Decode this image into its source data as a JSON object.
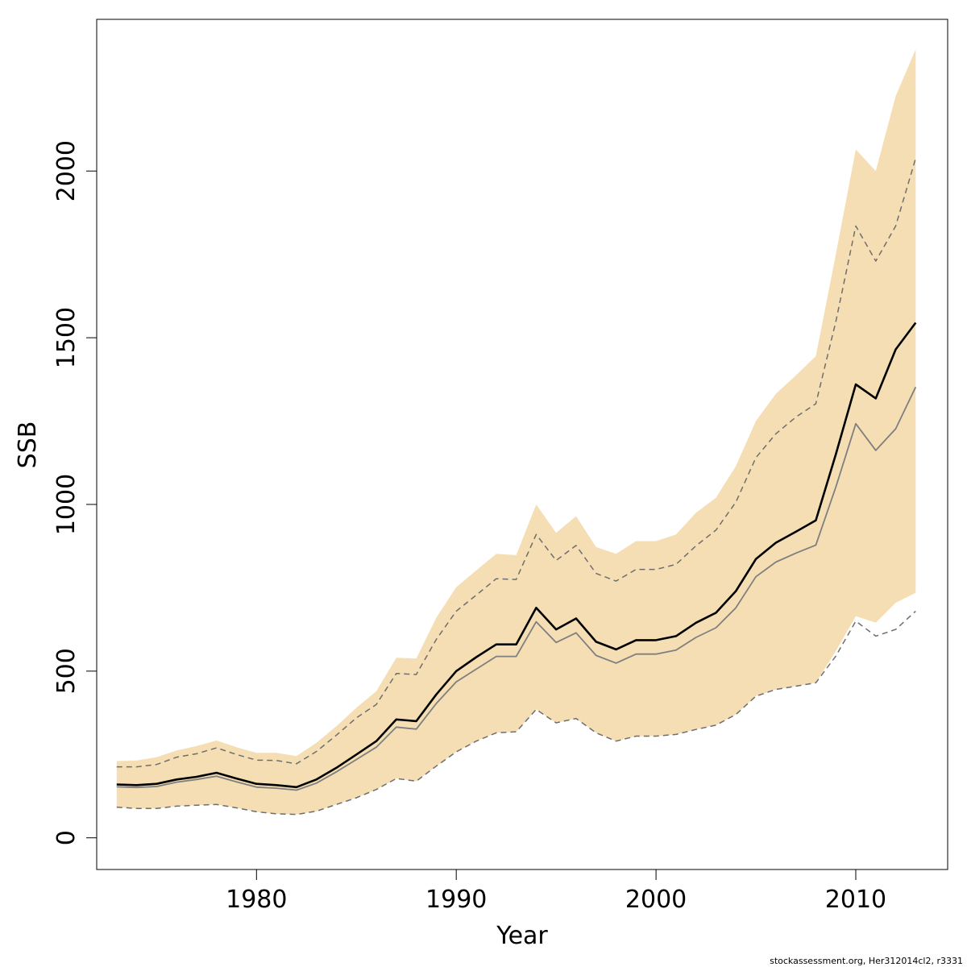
{
  "chart_data": {
    "type": "area",
    "xlabel": "Year",
    "ylabel": "SSB",
    "xlim": [
      1972,
      2014.6
    ],
    "ylim": [
      -95,
      2455
    ],
    "x_ticks": [
      1980,
      1990,
      2000,
      2010
    ],
    "x_tick_labels": [
      "1980",
      "1990",
      "2000",
      "2010"
    ],
    "y_ticks": [
      0,
      500,
      1000,
      1500,
      2000
    ],
    "y_tick_labels": [
      "0",
      "500",
      "1000",
      "1500",
      "2000"
    ],
    "grid": false,
    "colors": {
      "band": "#f5deb3",
      "estimate": "#000000",
      "previous": "#7f7f7f",
      "previous_ci": "#6e6e6e"
    },
    "years": [
      1973,
      1974,
      1975,
      1976,
      1977,
      1978,
      1979,
      1980,
      1981,
      1982,
      1983,
      1984,
      1985,
      1986,
      1987,
      1988,
      1989,
      1990,
      1991,
      1992,
      1993,
      1994,
      1995,
      1996,
      1997,
      1998,
      1999,
      2000,
      2001,
      2002,
      2003,
      2004,
      2005,
      2006,
      2007,
      2008,
      2009,
      2010,
      2011,
      2012,
      2013
    ],
    "band_upper": [
      230,
      232,
      242,
      262,
      275,
      292,
      272,
      255,
      255,
      245,
      285,
      335,
      390,
      440,
      540,
      538,
      660,
      752,
      802,
      852,
      848,
      1000,
      915,
      965,
      872,
      852,
      890,
      890,
      910,
      975,
      1020,
      1115,
      1250,
      1332,
      1387,
      1445,
      1750,
      2065,
      2000,
      2225,
      2365
    ],
    "band_lower": [
      92,
      88,
      88,
      95,
      98,
      100,
      90,
      78,
      72,
      70,
      80,
      100,
      120,
      145,
      178,
      170,
      215,
      258,
      290,
      315,
      318,
      385,
      345,
      358,
      315,
      290,
      305,
      305,
      310,
      325,
      338,
      370,
      425,
      445,
      455,
      465,
      560,
      665,
      645,
      705,
      735
    ],
    "series": [
      {
        "name": "",
        "role": "estimate",
        "values": [
          160,
          158,
          162,
          175,
          183,
          195,
          178,
          162,
          158,
          152,
          175,
          210,
          250,
          290,
          355,
          350,
          430,
          500,
          542,
          580,
          580,
          690,
          625,
          658,
          588,
          565,
          593,
          593,
          605,
          645,
          675,
          740,
          836,
          885,
          918,
          952,
          1150,
          1360,
          1318,
          1465,
          1545
        ]
      },
      {
        "name": "",
        "role": "previous",
        "values": [
          153,
          151,
          154,
          167,
          175,
          185,
          168,
          152,
          149,
          143,
          164,
          198,
          235,
          272,
          332,
          326,
          403,
          468,
          506,
          544,
          544,
          648,
          586,
          615,
          547,
          524,
          551,
          551,
          563,
          601,
          630,
          690,
          783,
          827,
          854,
          878,
          1052,
          1242,
          1162,
          1227,
          1352
        ]
      },
      {
        "name": "",
        "role": "previous_upper",
        "values": [
          213,
          213,
          220,
          242,
          252,
          270,
          250,
          233,
          232,
          222,
          259,
          308,
          360,
          400,
          493,
          490,
          595,
          680,
          728,
          777,
          775,
          910,
          832,
          877,
          793,
          770,
          805,
          805,
          820,
          876,
          923,
          1007,
          1140,
          1212,
          1262,
          1302,
          1548,
          1835,
          1730,
          1835,
          2038
        ]
      },
      {
        "name": "",
        "role": "previous_lower",
        "values": [
          92,
          88,
          88,
          95,
          98,
          100,
          90,
          78,
          72,
          70,
          80,
          100,
          120,
          145,
          178,
          170,
          215,
          258,
          290,
          315,
          318,
          385,
          345,
          358,
          315,
          290,
          305,
          305,
          310,
          325,
          338,
          370,
          425,
          445,
          455,
          465,
          545,
          650,
          605,
          625,
          680
        ]
      }
    ]
  },
  "footer": {
    "credit": "stockassessment.org, Her312014cl2, r3331"
  }
}
